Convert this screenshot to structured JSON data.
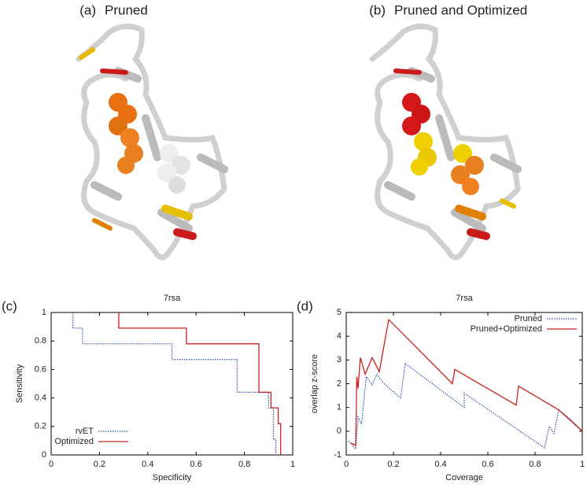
{
  "panels": [
    {
      "label": "(a)",
      "title": "Pruned"
    },
    {
      "label": "(b)",
      "title": "Pruned and Optimized"
    }
  ],
  "chart_data": [
    {
      "type": "line",
      "panel_label": "(c)",
      "title": "7rsa",
      "x_label": "Specificity",
      "y_label": "Sensitivity",
      "xlim": [
        0,
        1
      ],
      "ylim": [
        0,
        1
      ],
      "xticks": [
        0,
        0.2,
        0.4,
        0.6,
        0.8,
        1
      ],
      "yticks": [
        0,
        0.2,
        0.4,
        0.6,
        0.8,
        1
      ],
      "legend": "lower-left",
      "series": [
        {
          "name": "rvET",
          "color": "#2f4f9f",
          "dashed": true,
          "x": [
            0.09,
            0.09,
            0.13,
            0.13,
            0.5,
            0.5,
            0.77,
            0.77,
            0.9,
            0.9,
            0.92,
            0.92,
            0.93,
            0.93
          ],
          "values": [
            1,
            0.89,
            0.89,
            0.78,
            0.78,
            0.67,
            0.67,
            0.44,
            0.44,
            0.33,
            0.33,
            0.11,
            0.11,
            0
          ]
        },
        {
          "name": "Optimized",
          "color": "#cc1f1f",
          "dashed": false,
          "x": [
            0.28,
            0.28,
            0.56,
            0.56,
            0.86,
            0.86,
            0.91,
            0.91,
            0.94,
            0.94,
            0.95,
            0.95
          ],
          "values": [
            1,
            0.89,
            0.89,
            0.78,
            0.78,
            0.44,
            0.44,
            0.33,
            0.33,
            0.22,
            0.22,
            0
          ]
        }
      ]
    },
    {
      "type": "line",
      "panel_label": "(d)",
      "title": "7rsa",
      "x_label": "Coverage",
      "y_label": "overlap z-score",
      "xlim": [
        0,
        1
      ],
      "ylim": [
        -1,
        5
      ],
      "xticks": [
        0,
        0.2,
        0.4,
        0.6,
        0.8,
        1
      ],
      "yticks": [
        -1,
        0,
        1,
        2,
        3,
        4,
        5
      ],
      "legend": "upper-right",
      "series": [
        {
          "name": "Pruned",
          "color": "#2f4f9f",
          "dashed": true,
          "x": [
            0.01,
            0.04,
            0.05,
            0.065,
            0.085,
            0.11,
            0.13,
            0.16,
            0.23,
            0.25,
            0.5,
            0.5,
            0.84,
            0.86,
            0.88,
            0.9,
            0.95,
            1
          ],
          "values": [
            -0.4,
            -0.75,
            0.6,
            0.3,
            2.3,
            1.95,
            2.4,
            2.0,
            1.4,
            2.85,
            1.0,
            1.6,
            -0.7,
            0.2,
            -0.1,
            0.9,
            0.5,
            0
          ]
        },
        {
          "name": "Pruned+Optimized",
          "color": "#cc1f1f",
          "dashed": false,
          "x": [
            0.02,
            0.04,
            0.045,
            0.05,
            0.06,
            0.08,
            0.11,
            0.14,
            0.18,
            0.45,
            0.46,
            0.72,
            0.73,
            0.9,
            1
          ],
          "values": [
            -0.5,
            -0.6,
            2.3,
            1.8,
            3.1,
            2.4,
            3.1,
            2.5,
            4.7,
            2.0,
            2.6,
            1.1,
            1.9,
            0.9,
            0
          ]
        }
      ]
    }
  ]
}
